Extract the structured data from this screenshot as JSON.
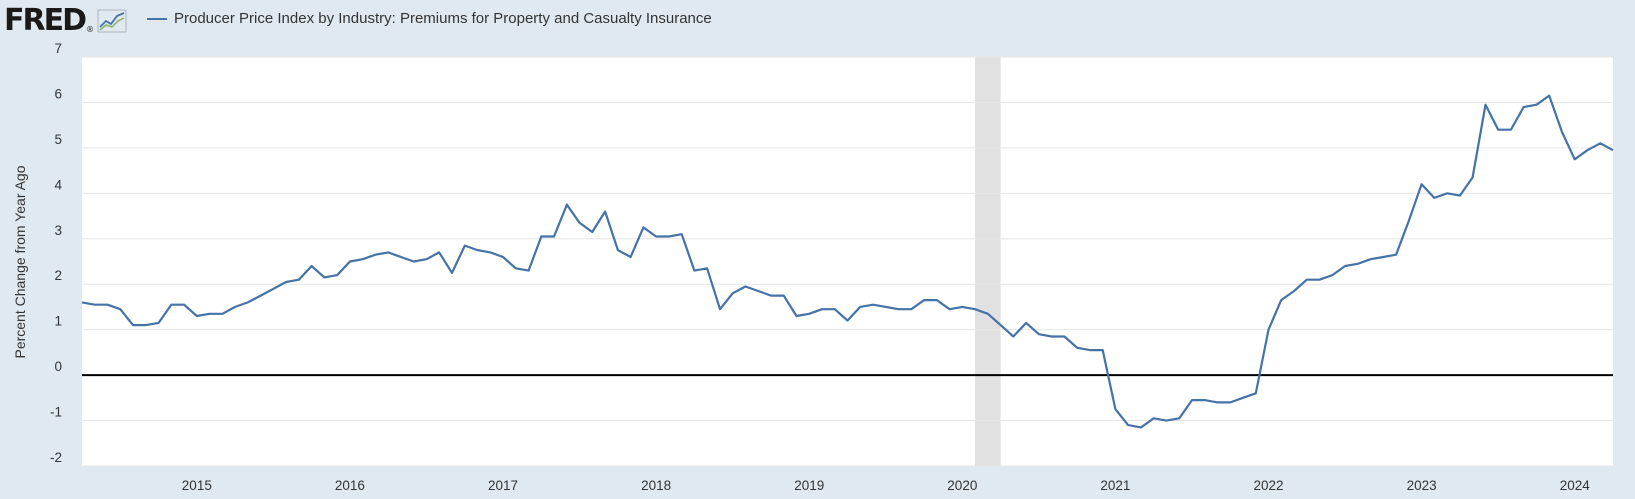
{
  "header": {
    "logo_text": "FRED",
    "series_title": "Producer Price Index by Industry: Premiums for Property and Casualty Insurance",
    "series_color": "#4572a7"
  },
  "chart_data": {
    "type": "line",
    "title": "Producer Price Index by Industry: Premiums for Property and Casualty Insurance",
    "xlabel": "",
    "ylabel": "Percent Change from Year Ago",
    "ylim": [
      -2,
      7
    ],
    "yticks": [
      7,
      6,
      5,
      4,
      3,
      2,
      1,
      0,
      -1,
      -2
    ],
    "xlim": [
      2014.25,
      2024.25
    ],
    "xticks": [
      2015,
      2016,
      2017,
      2018,
      2019,
      2020,
      2021,
      2022,
      2023,
      2024
    ],
    "recession": {
      "start": 2020.083,
      "end": 2020.25,
      "color": "#e1e1e1"
    },
    "zero_line": true,
    "grid": true,
    "series": [
      {
        "name": "Producer Price Index by Industry: Premiums for Property and Casualty Insurance",
        "color": "#4572a7",
        "x": [
          2014.25,
          2014.333,
          2014.417,
          2014.5,
          2014.583,
          2014.667,
          2014.75,
          2014.833,
          2014.917,
          2015.0,
          2015.083,
          2015.167,
          2015.25,
          2015.333,
          2015.417,
          2015.5,
          2015.583,
          2015.667,
          2015.75,
          2015.833,
          2015.917,
          2016.0,
          2016.083,
          2016.167,
          2016.25,
          2016.333,
          2016.417,
          2016.5,
          2016.583,
          2016.667,
          2016.75,
          2016.833,
          2016.917,
          2017.0,
          2017.083,
          2017.167,
          2017.25,
          2017.333,
          2017.417,
          2017.5,
          2017.583,
          2017.667,
          2017.75,
          2017.833,
          2017.917,
          2018.0,
          2018.083,
          2018.167,
          2018.25,
          2018.333,
          2018.417,
          2018.5,
          2018.583,
          2018.667,
          2018.75,
          2018.833,
          2018.917,
          2019.0,
          2019.083,
          2019.167,
          2019.25,
          2019.333,
          2019.417,
          2019.5,
          2019.583,
          2019.667,
          2019.75,
          2019.833,
          2019.917,
          2020.0,
          2020.083,
          2020.167,
          2020.25,
          2020.333,
          2020.417,
          2020.5,
          2020.583,
          2020.667,
          2020.75,
          2020.833,
          2020.917,
          2021.0,
          2021.083,
          2021.167,
          2021.25,
          2021.333,
          2021.417,
          2021.5,
          2021.583,
          2021.667,
          2021.75,
          2021.833,
          2021.917,
          2022.0,
          2022.083,
          2022.167,
          2022.25,
          2022.333,
          2022.417,
          2022.5,
          2022.583,
          2022.667,
          2022.75,
          2022.833,
          2022.917,
          2023.0,
          2023.083,
          2023.167,
          2023.25,
          2023.333,
          2023.417,
          2023.5,
          2023.583,
          2023.667,
          2023.75,
          2023.833,
          2023.917,
          2024.0,
          2024.083,
          2024.167,
          2024.25
        ],
        "values": [
          1.6,
          1.55,
          1.55,
          1.45,
          1.1,
          1.1,
          1.15,
          1.55,
          1.55,
          1.3,
          1.35,
          1.35,
          1.5,
          1.6,
          1.75,
          1.9,
          2.05,
          2.1,
          2.4,
          2.15,
          2.2,
          2.5,
          2.55,
          2.65,
          2.7,
          2.6,
          2.5,
          2.55,
          2.7,
          2.25,
          2.85,
          2.75,
          2.7,
          2.6,
          2.35,
          2.3,
          3.05,
          3.05,
          3.75,
          3.35,
          3.15,
          3.6,
          2.75,
          2.6,
          3.25,
          3.05,
          3.05,
          3.1,
          2.3,
          2.35,
          1.45,
          1.8,
          1.95,
          1.85,
          1.75,
          1.75,
          1.3,
          1.35,
          1.45,
          1.45,
          1.2,
          1.5,
          1.55,
          1.5,
          1.45,
          1.45,
          1.65,
          1.65,
          1.45,
          1.5,
          1.45,
          1.35,
          1.1,
          0.85,
          1.15,
          0.9,
          0.85,
          0.85,
          0.6,
          0.55,
          0.55,
          -0.75,
          -1.1,
          -1.15,
          -0.95,
          -1.0,
          -0.95,
          -0.55,
          -0.55,
          -0.6,
          -0.6,
          -0.5,
          -0.4,
          1.0,
          1.65,
          1.85,
          2.1,
          2.1,
          2.2,
          2.4,
          2.45,
          2.55,
          2.6,
          2.65,
          3.4,
          4.2,
          3.9,
          4.0,
          3.95,
          4.35,
          5.95,
          5.4,
          5.4,
          5.9,
          5.95,
          6.15,
          5.35,
          4.75,
          4.95,
          5.1,
          4.95
        ]
      }
    ]
  }
}
